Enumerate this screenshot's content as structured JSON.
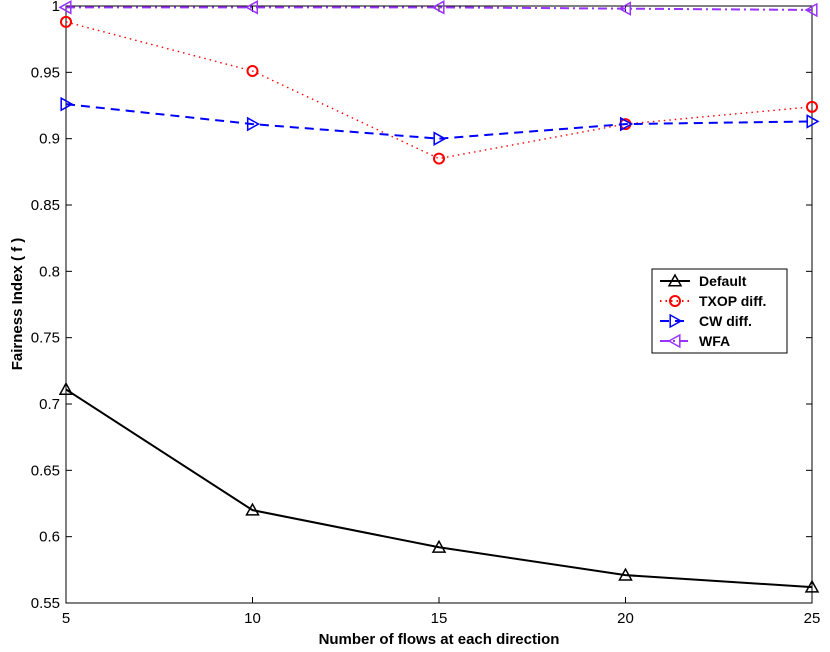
{
  "chart_data": {
    "type": "line",
    "title": "",
    "xlabel": "Number of flows at each direction",
    "ylabel": "Fairness Index ( f )",
    "x": [
      5,
      10,
      15,
      20,
      25
    ],
    "xlim": [
      5,
      25
    ],
    "ylim": [
      0.55,
      1
    ],
    "xticks": [
      "5",
      "10",
      "15",
      "20",
      "25"
    ],
    "yticks": [
      "0.55",
      "0.6",
      "0.65",
      "0.7",
      "0.75",
      "0.8",
      "0.85",
      "0.9",
      "0.95",
      "1"
    ],
    "grid": false,
    "legend_position": "right",
    "series": [
      {
        "name": "Default",
        "values": [
          0.711,
          0.62,
          0.592,
          0.571,
          0.562
        ],
        "color": "#000000",
        "dash": "solid",
        "marker": "triangle-up"
      },
      {
        "name": "TXOP diff.",
        "values": [
          0.988,
          0.951,
          0.885,
          0.911,
          0.924
        ],
        "color": "#ff0000",
        "dash": "dotted",
        "marker": "circle"
      },
      {
        "name": "CW diff.",
        "values": [
          0.926,
          0.911,
          0.9,
          0.911,
          0.913
        ],
        "color": "#0000ff",
        "dash": "dashed",
        "marker": "triangle-right"
      },
      {
        "name": "WFA",
        "values": [
          0.999,
          0.999,
          0.999,
          0.998,
          0.997
        ],
        "color": "#9933ff",
        "dash": "dashdot",
        "marker": "triangle-left"
      }
    ]
  }
}
